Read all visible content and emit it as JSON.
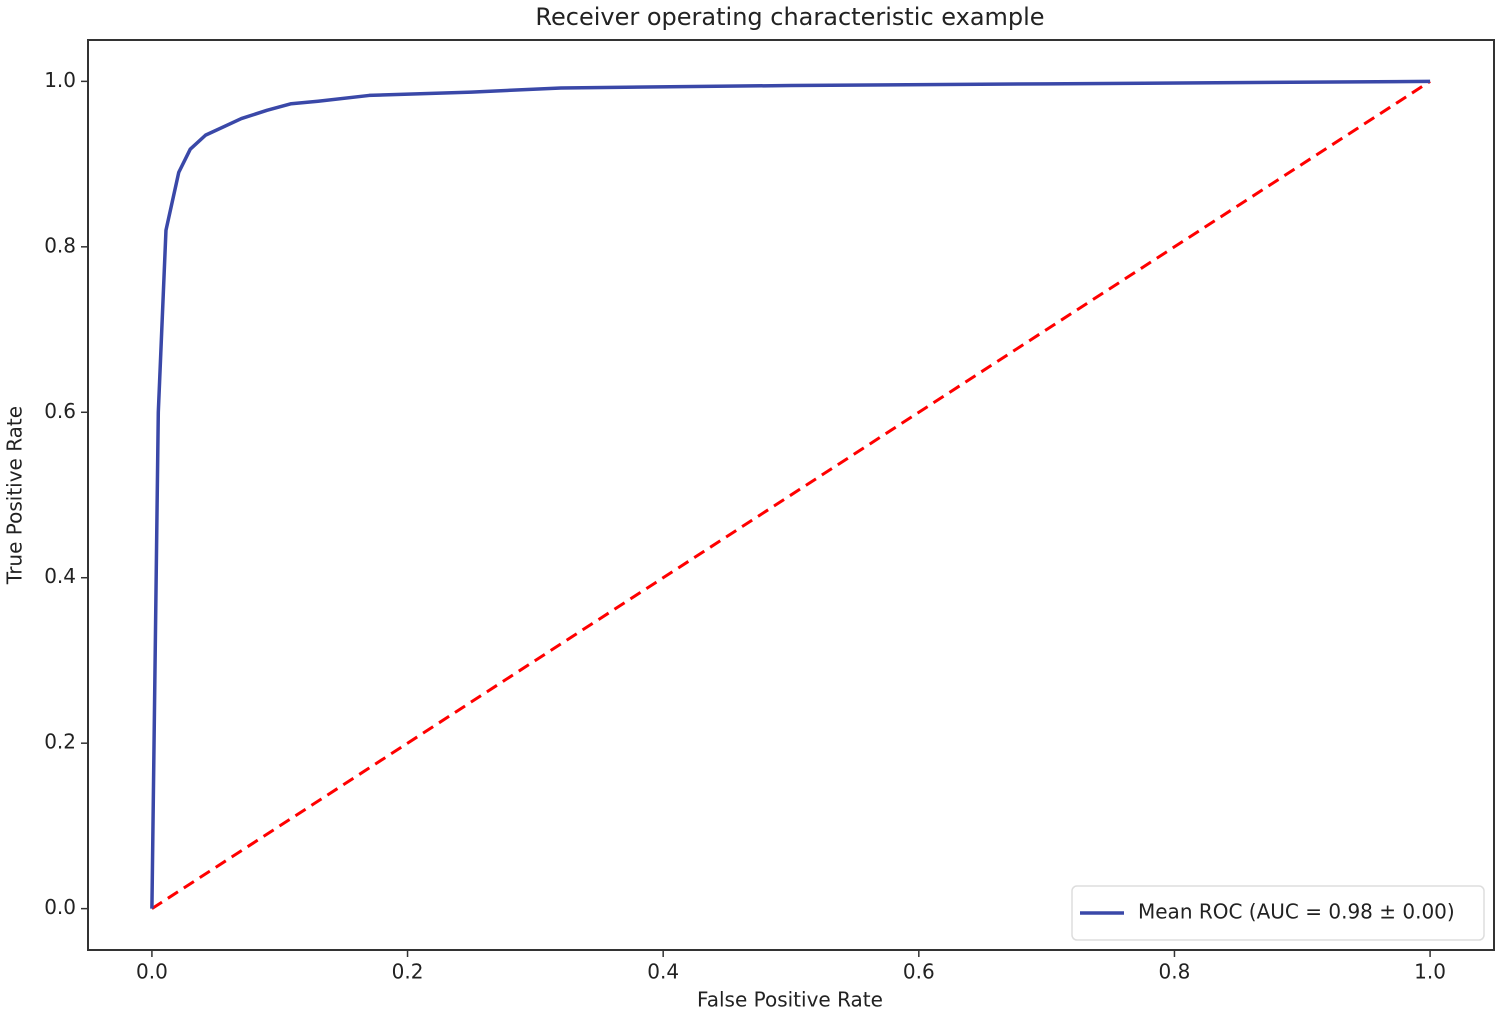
{
  "chart_data": {
    "type": "line",
    "title": "Receiver operating characteristic example",
    "x_label": "False Positive Rate",
    "y_label": "True Positive Rate",
    "series": [
      {
        "name": "Mean ROC (AUC = 0.98 ± 0.00)",
        "color": "#3a48a8",
        "x": [
          0,
          0.005,
          0.011,
          0.021,
          0.03,
          0.042,
          0.07,
          0.09,
          0.109,
          0.13,
          0.17,
          0.25,
          0.32,
          0.5,
          0.7,
          1.0
        ],
        "values": [
          0,
          0.6,
          0.82,
          0.89,
          0.918,
          0.935,
          0.955,
          0.965,
          0.973,
          0.976,
          0.983,
          0.987,
          0.992,
          0.995,
          0.997,
          1.0
        ]
      },
      {
        "color": "#ff0000",
        "dashed": true,
        "x": [
          0,
          1
        ],
        "values": [
          0,
          1
        ]
      }
    ],
    "xlim": [
      -0.05,
      1.05
    ],
    "ylim": [
      -0.05,
      1.05
    ],
    "xticks": [
      {
        "value": 0,
        "label": "0.0"
      },
      0.2,
      0.4,
      0.6,
      0.8,
      {
        "value": 1,
        "label": "1.0"
      }
    ],
    "yticks": [
      {
        "value": 0,
        "label": "0.0"
      },
      0.2,
      0.4,
      0.6,
      0.8,
      {
        "value": 1,
        "label": "1.0"
      }
    ],
    "grid": false,
    "legend": "lower right"
  }
}
